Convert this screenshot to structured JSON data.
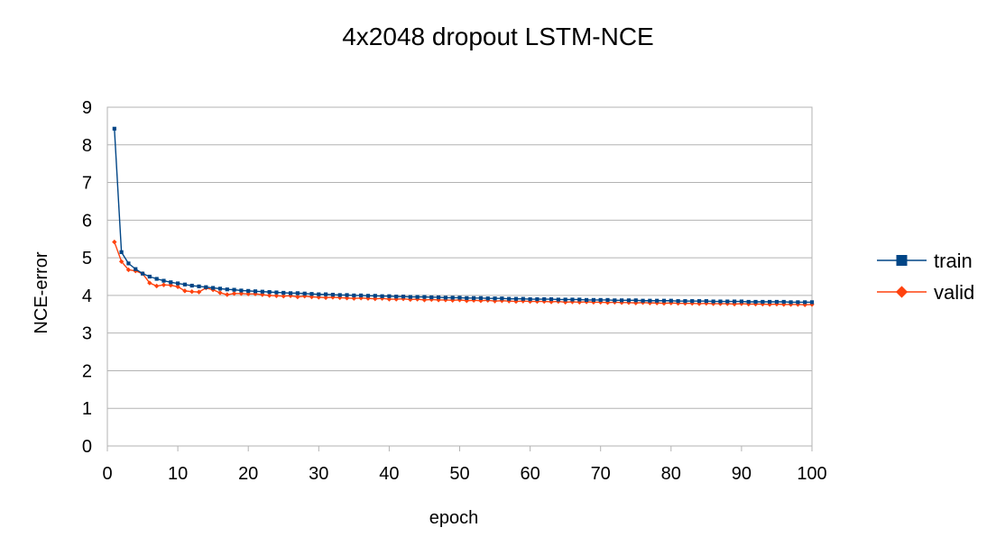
{
  "chart_data": {
    "type": "line",
    "title": "4x2048 dropout LSTM-NCE",
    "xlabel": "epoch",
    "ylabel": "NCE-error",
    "xlim": [
      0,
      100
    ],
    "ylim": [
      0,
      9
    ],
    "x_ticks": [
      0,
      10,
      20,
      30,
      40,
      50,
      60,
      70,
      80,
      90,
      100
    ],
    "y_ticks": [
      0,
      1,
      2,
      3,
      4,
      5,
      6,
      7,
      8,
      9
    ],
    "grid": true,
    "legend_position": "right",
    "x": [
      1,
      2,
      3,
      4,
      5,
      6,
      7,
      8,
      9,
      10,
      11,
      12,
      13,
      14,
      15,
      16,
      17,
      18,
      19,
      20,
      21,
      22,
      23,
      24,
      25,
      26,
      27,
      28,
      29,
      30,
      31,
      32,
      33,
      34,
      35,
      36,
      37,
      38,
      39,
      40,
      41,
      42,
      43,
      44,
      45,
      46,
      47,
      48,
      49,
      50,
      51,
      52,
      53,
      54,
      55,
      56,
      57,
      58,
      59,
      60,
      61,
      62,
      63,
      64,
      65,
      66,
      67,
      68,
      69,
      70,
      71,
      72,
      73,
      74,
      75,
      76,
      77,
      78,
      79,
      80,
      81,
      82,
      83,
      84,
      85,
      86,
      87,
      88,
      89,
      90,
      91,
      92,
      93,
      94,
      95,
      96,
      97,
      98,
      99,
      100
    ],
    "series": [
      {
        "name": "train",
        "color": "#004586",
        "marker": "square",
        "values": [
          8.43,
          5.15,
          4.85,
          4.7,
          4.58,
          4.5,
          4.44,
          4.39,
          4.35,
          4.32,
          4.29,
          4.26,
          4.24,
          4.22,
          4.2,
          4.18,
          4.16,
          4.15,
          4.13,
          4.12,
          4.11,
          4.1,
          4.09,
          4.08,
          4.07,
          4.06,
          4.06,
          4.05,
          4.04,
          4.03,
          4.03,
          4.02,
          4.01,
          4.01,
          4.0,
          4.0,
          3.99,
          3.99,
          3.98,
          3.98,
          3.97,
          3.97,
          3.96,
          3.96,
          3.96,
          3.95,
          3.95,
          3.94,
          3.94,
          3.94,
          3.93,
          3.93,
          3.93,
          3.92,
          3.92,
          3.92,
          3.91,
          3.91,
          3.91,
          3.9,
          3.9,
          3.9,
          3.9,
          3.89,
          3.89,
          3.89,
          3.89,
          3.88,
          3.88,
          3.88,
          3.88,
          3.87,
          3.87,
          3.87,
          3.87,
          3.86,
          3.86,
          3.86,
          3.86,
          3.86,
          3.85,
          3.85,
          3.85,
          3.85,
          3.85,
          3.84,
          3.84,
          3.84,
          3.84,
          3.84,
          3.83,
          3.83,
          3.83,
          3.83,
          3.83,
          3.83,
          3.82,
          3.82,
          3.82,
          3.82
        ]
      },
      {
        "name": "valid",
        "color": "#ff420e",
        "marker": "diamond",
        "values": [
          5.42,
          4.9,
          4.68,
          4.65,
          4.58,
          4.33,
          4.25,
          4.28,
          4.27,
          4.23,
          4.12,
          4.1,
          4.09,
          4.2,
          4.15,
          4.07,
          4.02,
          4.05,
          4.05,
          4.04,
          4.04,
          4.02,
          4.0,
          3.99,
          3.98,
          3.99,
          3.96,
          3.98,
          3.96,
          3.95,
          3.94,
          3.95,
          3.94,
          3.93,
          3.92,
          3.93,
          3.92,
          3.91,
          3.92,
          3.9,
          3.9,
          3.91,
          3.89,
          3.9,
          3.88,
          3.89,
          3.88,
          3.88,
          3.87,
          3.88,
          3.86,
          3.87,
          3.86,
          3.87,
          3.85,
          3.86,
          3.85,
          3.84,
          3.85,
          3.84,
          3.84,
          3.84,
          3.83,
          3.84,
          3.82,
          3.83,
          3.82,
          3.83,
          3.82,
          3.82,
          3.81,
          3.82,
          3.81,
          3.81,
          3.8,
          3.81,
          3.8,
          3.8,
          3.79,
          3.8,
          3.79,
          3.79,
          3.79,
          3.78,
          3.79,
          3.78,
          3.78,
          3.78,
          3.77,
          3.78,
          3.77,
          3.77,
          3.77,
          3.76,
          3.77,
          3.76,
          3.76,
          3.76,
          3.75,
          3.76
        ]
      }
    ]
  }
}
